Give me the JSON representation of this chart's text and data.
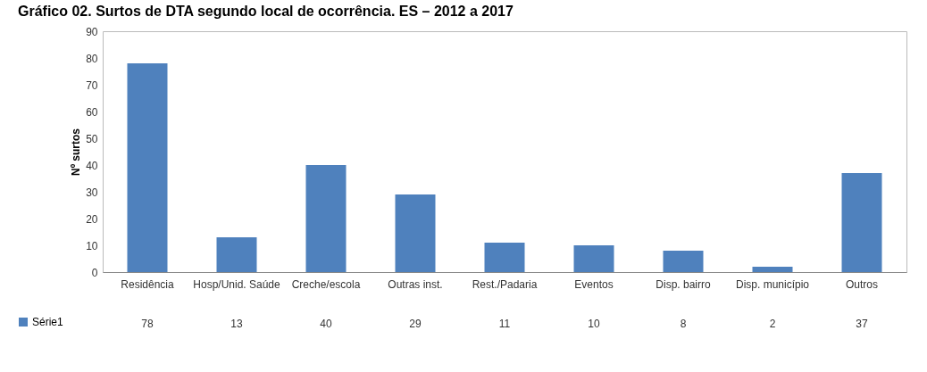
{
  "chart_data": {
    "type": "bar",
    "title": "Gráfico 02. Surtos de DTA segundo local de ocorrência. ES – 2012 a 2017",
    "ylabel": "Nº surtos",
    "categories": [
      "Residência",
      "Hosp/Unid. Saúde",
      "Creche/escola",
      "Outras inst.",
      "Rest./Padaria",
      "Eventos",
      "Disp. bairro",
      "Disp. município",
      "Outros"
    ],
    "series": [
      {
        "name": "Série1",
        "color": "#4f81bd",
        "values": [
          78,
          13,
          40,
          29,
          11,
          10,
          8,
          2,
          37
        ]
      }
    ],
    "ylim": [
      0,
      90
    ],
    "yticks": [
      0,
      10,
      20,
      30,
      40,
      50,
      60,
      70,
      80,
      90
    ],
    "data_labels": true,
    "legend": "bottom left"
  }
}
